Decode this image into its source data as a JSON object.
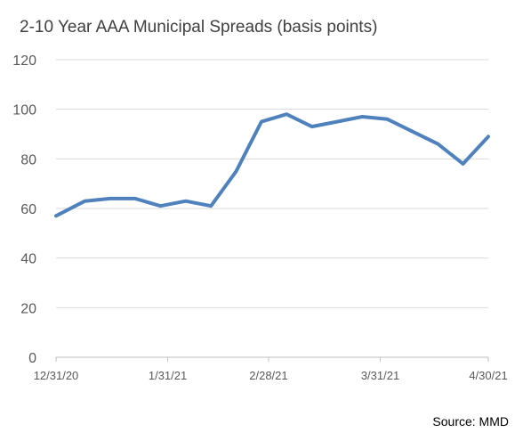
{
  "chart_data": {
    "type": "line",
    "title": "2-10 Year AAA Municipal Spreads (basis points)",
    "source": "Source: MMD",
    "ylim": [
      0,
      120
    ],
    "y_ticks": [
      0,
      20,
      40,
      60,
      80,
      100,
      120
    ],
    "x_range": [
      "2020-12-31",
      "2021-04-30"
    ],
    "x_tick_labels": [
      {
        "date": "2020-12-31",
        "label": "12/31/20"
      },
      {
        "date": "2021-01-31",
        "label": "1/31/21"
      },
      {
        "date": "2021-02-28",
        "label": "2/28/21"
      },
      {
        "date": "2021-03-31",
        "label": "3/31/21"
      },
      {
        "date": "2021-04-30",
        "label": "4/30/21"
      }
    ],
    "grid": true,
    "line_color": "#4F81BD",
    "series": [
      {
        "points": [
          {
            "x": "2020-12-31",
            "y": 57
          },
          {
            "x": "2021-01-08",
            "y": 63
          },
          {
            "x": "2021-01-15",
            "y": 64
          },
          {
            "x": "2021-01-22",
            "y": 64
          },
          {
            "x": "2021-01-29",
            "y": 61
          },
          {
            "x": "2021-02-05",
            "y": 63
          },
          {
            "x": "2021-02-12",
            "y": 61
          },
          {
            "x": "2021-02-19",
            "y": 75
          },
          {
            "x": "2021-02-26",
            "y": 95
          },
          {
            "x": "2021-03-05",
            "y": 98
          },
          {
            "x": "2021-03-12",
            "y": 93
          },
          {
            "x": "2021-03-19",
            "y": 95
          },
          {
            "x": "2021-03-26",
            "y": 97
          },
          {
            "x": "2021-04-02",
            "y": 96
          },
          {
            "x": "2021-04-09",
            "y": 91
          },
          {
            "x": "2021-04-16",
            "y": 86
          },
          {
            "x": "2021-04-23",
            "y": 78
          },
          {
            "x": "2021-04-30",
            "y": 89
          }
        ]
      }
    ]
  }
}
